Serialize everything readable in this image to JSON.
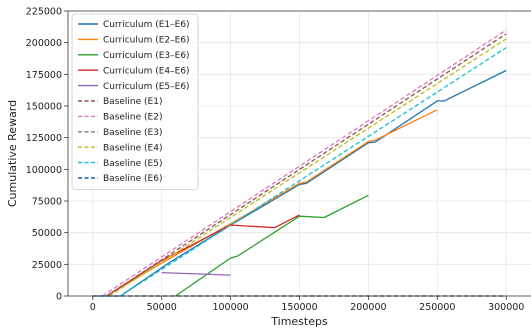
{
  "chart_data": {
    "type": "line",
    "title": "",
    "xlabel": "Timesteps",
    "ylabel": "Cumulative Reward",
    "xlim": [
      -18000,
      318000
    ],
    "ylim": [
      0,
      225000
    ],
    "xticks": [
      0,
      50000,
      100000,
      150000,
      200000,
      250000,
      300000
    ],
    "xtick_labels": [
      "0",
      "50000",
      "100000",
      "150000",
      "200000",
      "250000",
      "300000"
    ],
    "yticks": [
      0,
      25000,
      50000,
      75000,
      100000,
      125000,
      150000,
      175000,
      200000,
      225000
    ],
    "ytick_labels": [
      "0",
      "25000",
      "50000",
      "75000",
      "100000",
      "125000",
      "150000",
      "175000",
      "200000",
      "225000"
    ],
    "grid": true,
    "legend_position": "top-left",
    "series": [
      {
        "name": "Curriculum (E1–E6)",
        "color": "#1f77b4",
        "dash": "solid",
        "x": [
          0,
          20000,
          55000,
          100000,
          150000,
          155000,
          200000,
          205000,
          250000,
          255000,
          300000
        ],
        "y": [
          0,
          0,
          26000,
          56000,
          88000,
          89000,
          121000,
          121500,
          154000,
          154000,
          178000
        ]
      },
      {
        "name": "Curriculum (E2–E6)",
        "color": "#ff7f0e",
        "dash": "solid",
        "x": [
          10000,
          50000,
          100000,
          150000,
          155000,
          200000,
          205000,
          250000
        ],
        "y": [
          0,
          26000,
          57000,
          89000,
          90000,
          122000,
          123000,
          147000
        ]
      },
      {
        "name": "Curriculum (E3–E6)",
        "color": "#2ca02c",
        "dash": "solid",
        "x": [
          60000,
          100000,
          105000,
          150000,
          168000,
          200000
        ],
        "y": [
          0,
          30000,
          31500,
          63000,
          62000,
          79500
        ]
      },
      {
        "name": "Curriculum (E4–E6)",
        "color": "#d62728",
        "dash": "solid",
        "x": [
          10000,
          50000,
          100000,
          132000,
          150000
        ],
        "y": [
          0,
          28000,
          56000,
          54000,
          64000
        ]
      },
      {
        "name": "Curriculum (E5–E6)",
        "color": "#9467bd",
        "dash": "solid",
        "x": [
          50000,
          100000
        ],
        "y": [
          18500,
          16500
        ]
      },
      {
        "name": "Baseline (E1)",
        "color": "#8c564b",
        "dash": "dashed",
        "x": [
          10000,
          300000
        ],
        "y": [
          0,
          207000
        ]
      },
      {
        "name": "Baseline (E2)",
        "color": "#e377c2",
        "dash": "dashed",
        "x": [
          7000,
          300000
        ],
        "y": [
          0,
          210000
        ]
      },
      {
        "name": "Baseline (E3)",
        "color": "#7f7f7f",
        "dash": "dashed",
        "x": [
          0,
          300000
        ],
        "y": [
          0,
          0
        ]
      },
      {
        "name": "Baseline (E4)",
        "color": "#bcbd22",
        "dash": "dashed",
        "x": [
          12000,
          300000
        ],
        "y": [
          0,
          203000
        ]
      },
      {
        "name": "Baseline (E5)",
        "color": "#17becf",
        "dash": "dashed",
        "x": [
          20000,
          300000
        ],
        "y": [
          0,
          196000
        ]
      },
      {
        "name": "Baseline (E6)",
        "color": "#1f5f9f",
        "dash": "dashed",
        "x": [
          0,
          300000
        ],
        "y": [
          0,
          0
        ]
      }
    ]
  }
}
